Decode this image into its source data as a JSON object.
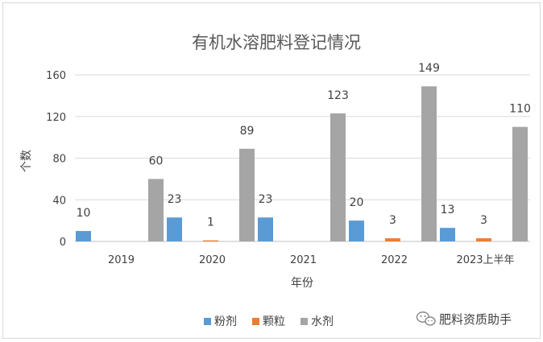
{
  "chart_data": {
    "type": "bar",
    "title": "有机水溶肥料登记情况",
    "xlabel": "年份",
    "ylabel": "个数",
    "categories": [
      "2019",
      "2020",
      "2021",
      "2022",
      "2023上半年"
    ],
    "ylim": [
      0,
      160
    ],
    "yticks": [
      0,
      40,
      80,
      120,
      160
    ],
    "grid": true,
    "legend_position": "bottom",
    "series": [
      {
        "name": "粉剂",
        "color": "#5b9bd5",
        "values": [
          10,
          23,
          23,
          20,
          13
        ]
      },
      {
        "name": "颗粒",
        "color": "#ed7d31",
        "values": [
          0,
          1,
          0,
          3,
          3
        ]
      },
      {
        "name": "水剂",
        "color": "#a5a5a5",
        "values": [
          60,
          89,
          123,
          149,
          110
        ]
      }
    ],
    "data_labels": [
      [
        "10",
        "23",
        "23",
        "20",
        "13"
      ],
      [
        "",
        "1",
        "",
        "3",
        "3"
      ],
      [
        "60",
        "89",
        "123",
        "149",
        "110"
      ]
    ]
  },
  "watermark": {
    "text": "肥料资质助手",
    "icon": "wechat-icon"
  }
}
